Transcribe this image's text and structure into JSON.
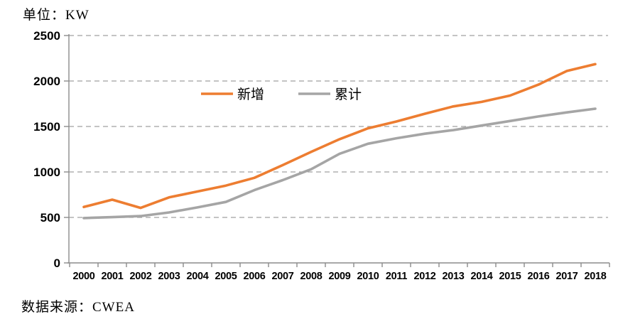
{
  "page": {
    "unit_label": "单位：KW",
    "source_label": "数据来源：CWEA"
  },
  "chart_data": {
    "type": "line",
    "title": "单位：KW",
    "source": "数据来源：CWEA",
    "x": [
      2000,
      2001,
      2002,
      2003,
      2004,
      2005,
      2006,
      2007,
      2008,
      2009,
      2010,
      2011,
      2012,
      2013,
      2014,
      2015,
      2016,
      2017,
      2018
    ],
    "series": [
      {
        "name": "新增",
        "color": "#ED7D31",
        "values": [
          615,
          695,
          605,
          720,
          785,
          850,
          935,
          1075,
          1220,
          1360,
          1480,
          1555,
          1640,
          1720,
          1770,
          1840,
          1960,
          2110,
          2185
        ]
      },
      {
        "name": "累计",
        "color": "#A5A5A5",
        "values": [
          493,
          503,
          515,
          555,
          610,
          670,
          800,
          910,
          1030,
          1200,
          1310,
          1370,
          1420,
          1460,
          1510,
          1560,
          1610,
          1655,
          1695
        ]
      }
    ],
    "ylim": [
      0,
      2500
    ],
    "ytick_interval": 500,
    "yticks": [
      0,
      500,
      1000,
      1500,
      2000,
      2500
    ],
    "grid": "horizontal-dashed",
    "gridline_color": "#A0A0A0",
    "axis_color": "#8C8C8C",
    "legend_position": "inside-top-center",
    "legend": [
      "新增",
      "累计"
    ]
  }
}
